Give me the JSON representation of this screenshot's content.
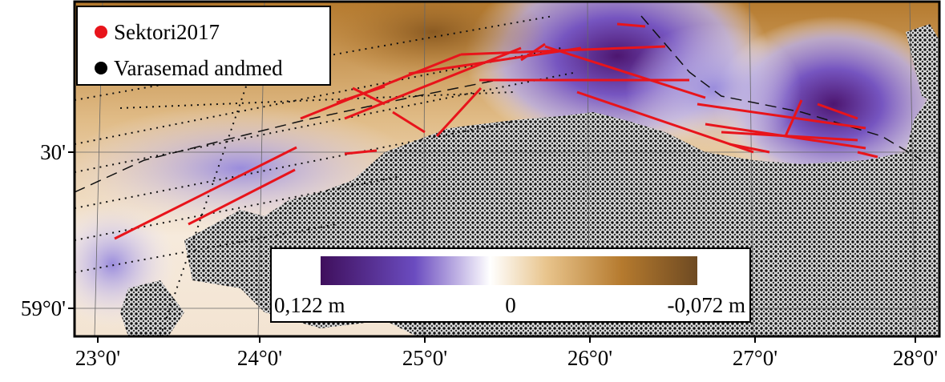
{
  "legend": [
    {
      "label": "Sektori2017",
      "color": "#e8141b"
    },
    {
      "label": "Varasemad andmed",
      "color": "#000000"
    }
  ],
  "x_axis": {
    "ticks": [
      "23°0'",
      "24°0'",
      "25°0'",
      "26°0'",
      "27°0'",
      "28°0'"
    ]
  },
  "y_axis": {
    "ticks": [
      "30'",
      "59°0'"
    ]
  },
  "colorbar": {
    "labels": [
      "0,122 m",
      "0",
      "-0,072 m"
    ]
  }
}
